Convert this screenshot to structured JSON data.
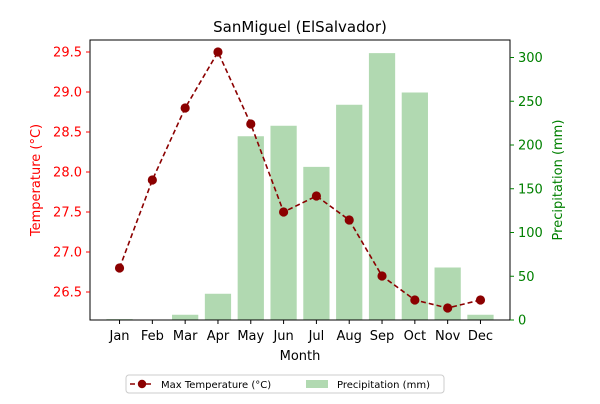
{
  "chart_data": {
    "type": "bar+line",
    "title": "SanMiguel (ElSalvador)",
    "xlabel": "Month",
    "categories": [
      "Jan",
      "Feb",
      "Mar",
      "Apr",
      "May",
      "Jun",
      "Jul",
      "Aug",
      "Sep",
      "Oct",
      "Nov",
      "Dec"
    ],
    "y_left": {
      "label": "Temperature (°C)",
      "range": [
        26.15,
        29.65
      ],
      "ticks": [
        "26.5",
        "27.0",
        "27.5",
        "28.0",
        "28.5",
        "29.0",
        "29.5"
      ],
      "color": "#ff0000"
    },
    "y_right": {
      "label": "Precipitation (mm)",
      "range": [
        0,
        320
      ],
      "ticks": [
        "0",
        "50",
        "100",
        "150",
        "200",
        "250",
        "300"
      ],
      "color": "#008000"
    },
    "series": [
      {
        "name": "Max Temperature (°C)",
        "kind": "line",
        "axis": "left",
        "color": "#8b0000",
        "style": "dashed, circle markers",
        "values": [
          26.8,
          27.9,
          28.8,
          29.5,
          28.6,
          27.5,
          27.7,
          27.4,
          26.7,
          26.4,
          26.3,
          26.4
        ]
      },
      {
        "name": "Precipitation (mm)",
        "kind": "bar",
        "axis": "right",
        "color": "#b1d9b1",
        "values": [
          1,
          0,
          6,
          30,
          210,
          222,
          175,
          246,
          305,
          260,
          60,
          6
        ]
      }
    ],
    "legend_position": "bottom-center, below plot"
  }
}
